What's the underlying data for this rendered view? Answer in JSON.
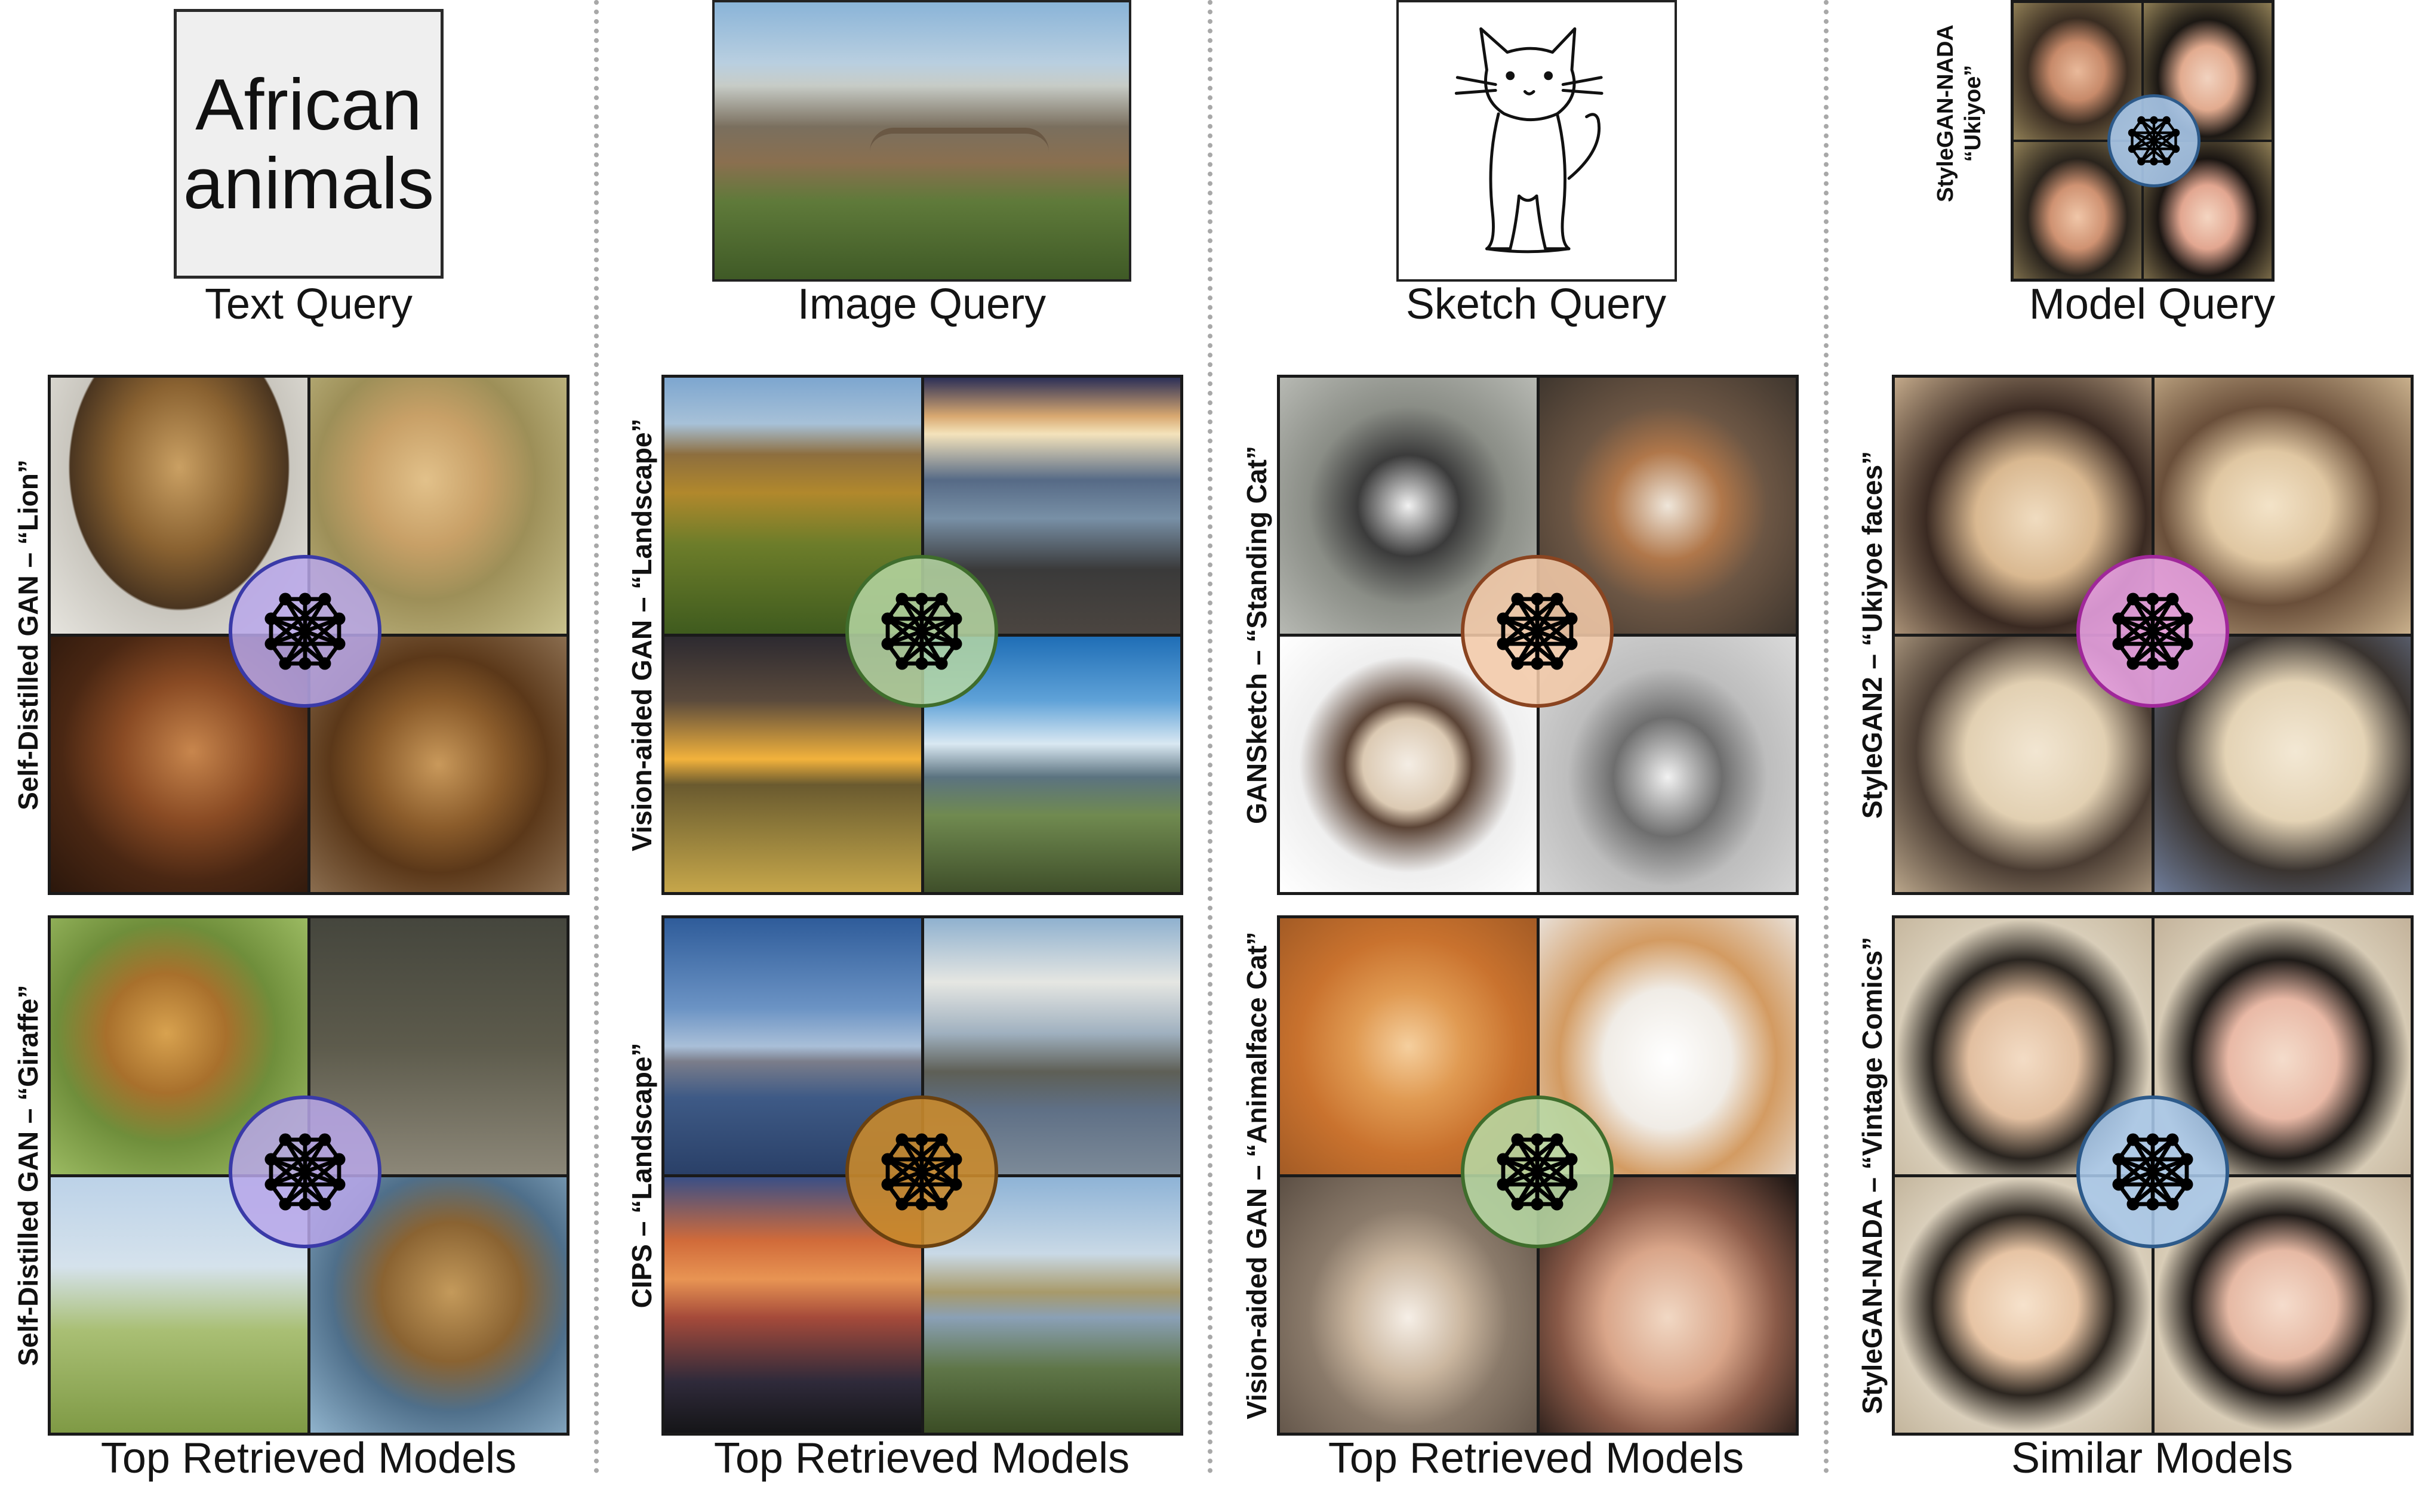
{
  "queries": {
    "text_query_content": "African animals",
    "text_label": "Text Query",
    "image_label": "Image Query",
    "sketch_label": "Sketch Query",
    "model_label": "Model Query",
    "model_query_name": "StyleGAN-NADA",
    "model_query_style": "“Ukiyoe”"
  },
  "bottom_labels": {
    "col1": "Top Retrieved Models",
    "col2": "Top Retrieved Models",
    "col3": "Top Retrieved Models",
    "col4": "Similar Models"
  },
  "models": {
    "c1_top": "Self-Distilled GAN – “Lion”",
    "c1_bottom": "Self-Distilled GAN – “Giraffe”",
    "c2_top": "Vision-aided GAN – “Landscape”",
    "c2_bottom": "CIPS – “Landscape”",
    "c3_top": "GANSketch – “Standing Cat”",
    "c3_bottom": "Vision-aided GAN – “Animalface Cat”",
    "c4_top": "StyleGAN2 – “Ukiyoe faces”",
    "c4_bottom": "StyleGAN-NADA – “Vintage Comics”"
  },
  "badge_icon": "neural-network-icon",
  "badge_colors": {
    "purple": "#b9a7ea",
    "green": "#b7d8a4",
    "peach": "#f2c9a8",
    "orange": "#c98a2c",
    "pink": "#e9a2e4",
    "blue": "#a9c8ea"
  }
}
